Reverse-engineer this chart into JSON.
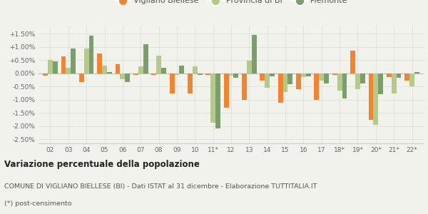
{
  "categories": [
    "02",
    "03",
    "04",
    "05",
    "06",
    "07",
    "08",
    "09",
    "10",
    "11*",
    "12",
    "13",
    "14",
    "15",
    "16",
    "17",
    "18*",
    "19*",
    "20*",
    "21*",
    "22*"
  ],
  "vigliano": [
    -0.08,
    0.65,
    -0.32,
    0.75,
    0.35,
    -0.05,
    -0.07,
    -0.75,
    -0.75,
    -0.05,
    -1.3,
    -1.0,
    -0.28,
    -1.1,
    -0.6,
    -1.0,
    -0.07,
    0.85,
    -1.75,
    -0.15,
    -0.28
  ],
  "provincia": [
    0.5,
    0.22,
    0.93,
    0.28,
    -0.22,
    0.27,
    0.68,
    -0.05,
    0.27,
    -1.87,
    -0.1,
    0.47,
    -0.55,
    -0.7,
    -0.13,
    -0.28,
    -0.65,
    -0.6,
    -1.95,
    -0.75,
    -0.48
  ],
  "piemonte": [
    0.44,
    0.93,
    1.42,
    0.05,
    -0.32,
    1.1,
    0.22,
    0.3,
    -0.05,
    -2.08,
    -0.18,
    1.45,
    -0.12,
    -0.42,
    -0.12,
    -0.38,
    -0.95,
    -0.38,
    -0.8,
    -0.18,
    0.04
  ],
  "vigliano_color": "#f28333",
  "provincia_color": "#b5c98a",
  "piemonte_color": "#7a9e6e",
  "background_color": "#f2f2ed",
  "grid_color": "#e0e0d8",
  "ylim": [
    -2.65,
    1.8
  ],
  "yticks": [
    -2.5,
    -2.0,
    -1.5,
    -1.0,
    -0.5,
    0.0,
    0.5,
    1.0,
    1.5
  ],
  "ytick_labels": [
    "-2.50%",
    "-2.00%",
    "-1.50%",
    "-1.00%",
    "-0.50%",
    "0.00%",
    "+0.50%",
    "+1.00%",
    "+1.50%"
  ],
  "title": "Variazione percentuale della popolazione",
  "subtitle": "COMUNE DI VIGLIANO BIELLESE (BI) - Dati ISTAT al 31 dicembre - Elaborazione TUTTITALIA.IT",
  "footnote": "(*) post-censimento",
  "legend_labels": [
    "Vigliano Biellese",
    "Provincia di BI",
    "Piemonte"
  ],
  "bar_width": 0.27
}
